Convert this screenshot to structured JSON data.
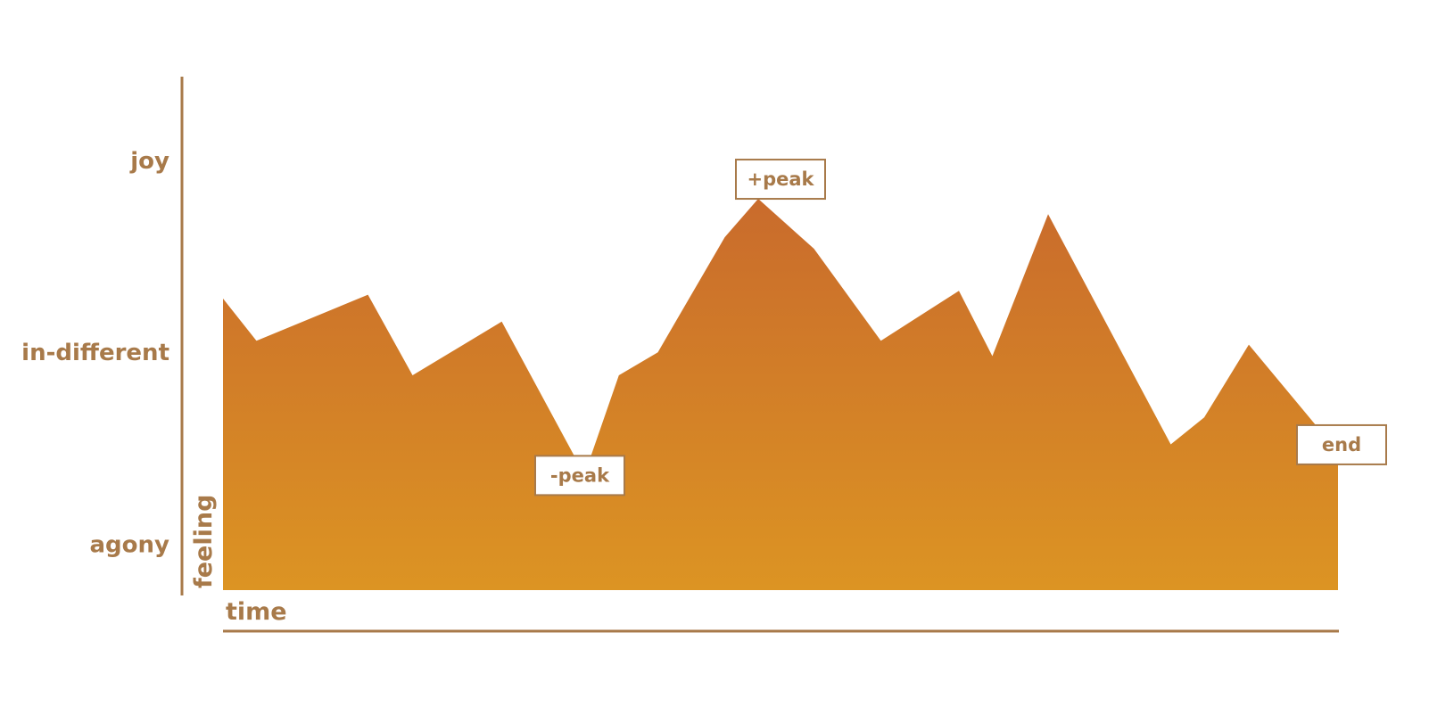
{
  "chart_data": {
    "type": "area",
    "xlabel": "time",
    "ylabel": "feeling",
    "y_levels": [
      {
        "label": "agony",
        "value": 0
      },
      {
        "label": "in-different",
        "value": 50
      },
      {
        "label": "joy",
        "value": 100
      }
    ],
    "ylim": [
      -12,
      100
    ],
    "xlim": [
      0,
      100
    ],
    "series": [
      {
        "points": [
          [
            0,
            64
          ],
          [
            3,
            53
          ],
          [
            13,
            65
          ],
          [
            17,
            44
          ],
          [
            25,
            58
          ],
          [
            31.5,
            23
          ],
          [
            33,
            23
          ],
          [
            35.5,
            44
          ],
          [
            39,
            50
          ],
          [
            45,
            80
          ],
          [
            48,
            90
          ],
          [
            53,
            77
          ],
          [
            59,
            53
          ],
          [
            66,
            66
          ],
          [
            69,
            49
          ],
          [
            74,
            86
          ],
          [
            85,
            26
          ],
          [
            88,
            33
          ],
          [
            92,
            52
          ],
          [
            98,
            31
          ],
          [
            100,
            31
          ]
        ],
        "color_top": "#c96b2c",
        "color_bottom": "#dc9423"
      }
    ],
    "annotations": [
      {
        "label": "+peak",
        "x": 50,
        "y": 90
      },
      {
        "label": "-peak",
        "x": 32,
        "y": 23
      },
      {
        "label": "end",
        "x": 100,
        "y": 31
      }
    ],
    "grid": false,
    "legend": "none"
  }
}
